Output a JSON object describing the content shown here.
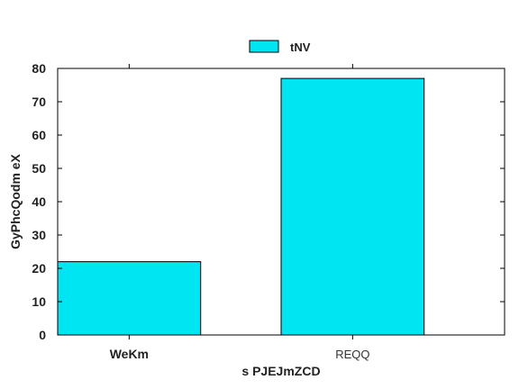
{
  "chart_data": {
    "type": "bar",
    "categories": [
      "WeKm",
      "REQQ"
    ],
    "series": [
      {
        "name": "tNV",
        "values": [
          22,
          77
        ],
        "color": "#00e5f2"
      }
    ],
    "xlabel": "s PJEJmZCD",
    "ylabel": "GyPhcQodm eX",
    "ylim": [
      0,
      80
    ],
    "yticks": [
      0,
      10,
      20,
      30,
      40,
      50,
      60,
      70,
      80
    ],
    "legend_position": "top-center",
    "grid": false
  }
}
